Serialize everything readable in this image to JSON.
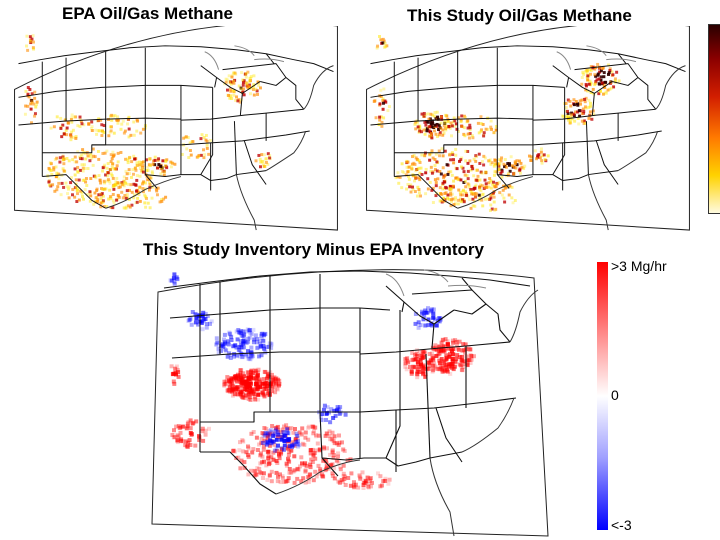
{
  "panels": {
    "epa": {
      "title": "EPA Oil/Gas Methane"
    },
    "study": {
      "title": "This Study Oil/Gas Methane"
    },
    "diff": {
      "title": "This Study Inventory Minus EPA Inventory"
    }
  },
  "colorbar_top": {
    "colors": [
      "#2a0000",
      "#8b0000",
      "#d21e00",
      "#ff7a00",
      "#ffd200",
      "#fffbe0"
    ]
  },
  "colorbar_diff": {
    "max_label": ">3 Mg/hr",
    "mid_label": "0",
    "min_label": "<-3",
    "colors": [
      "#ff0000",
      "#ffffff",
      "#0000ff"
    ]
  },
  "colors": {
    "state_border": "#111111",
    "coast": "#333333",
    "lakes": "#888888",
    "emission_low": "#ffe600",
    "emission_mid": "#ff8c00",
    "emission_high": "#c00000",
    "emission_max": "#300000",
    "diff_positive": "#ff0000",
    "diff_negative": "#0000ff"
  }
}
